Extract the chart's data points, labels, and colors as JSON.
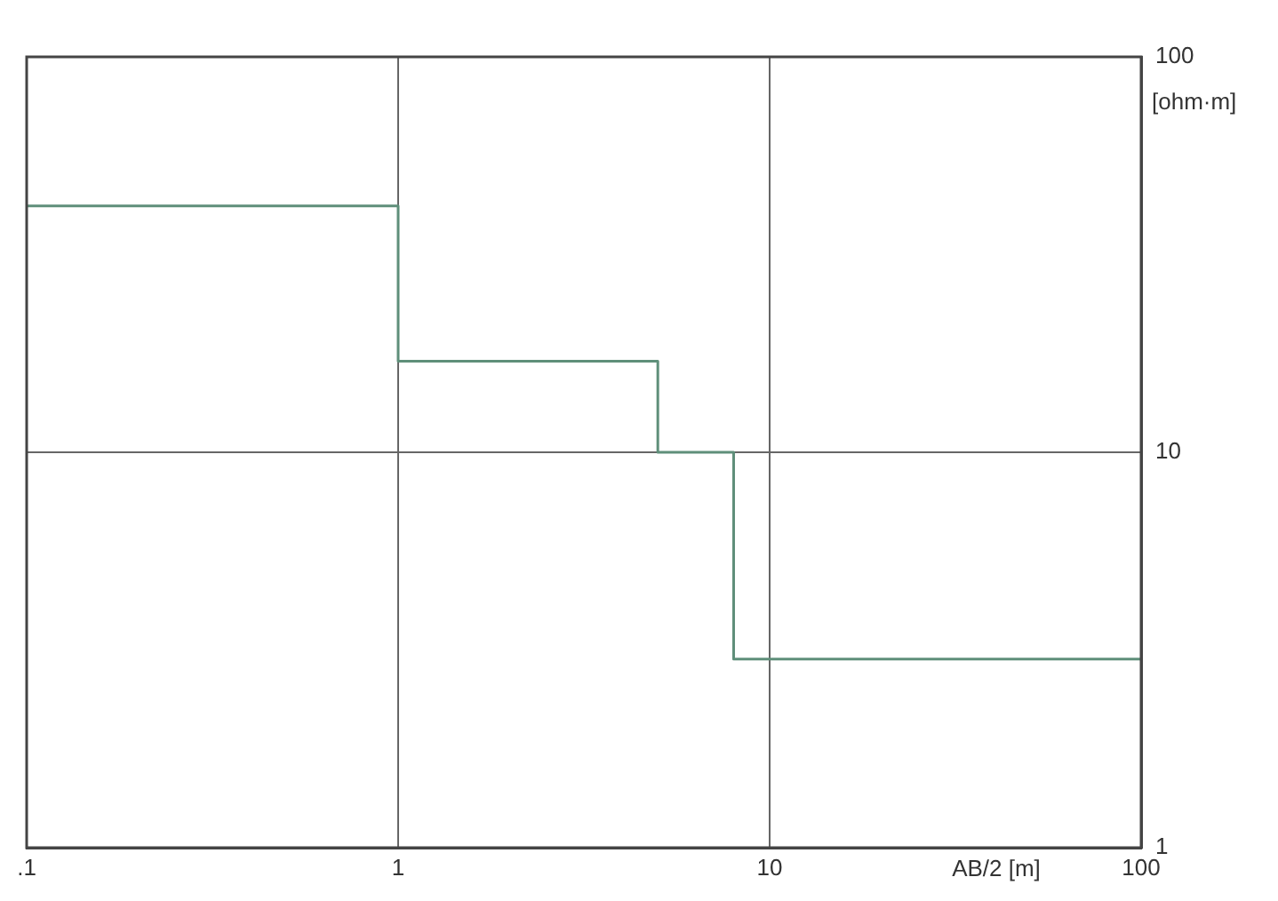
{
  "chart_data": {
    "type": "step",
    "xlabel": "AB/2 [m]",
    "ylabel": "[ohm·m]",
    "log": "xy",
    "grid": true,
    "legend": false,
    "xlim": [
      0.1,
      100
    ],
    "xticks": [
      {
        "value": 0.1,
        "label": ".1"
      },
      1,
      10,
      100
    ],
    "ylim": [
      1,
      100
    ],
    "yticks": [
      1,
      10,
      100
    ],
    "series": [
      {
        "color": "#5f8f7a",
        "x": [
          0.1,
          1,
          5,
          8,
          100
        ],
        "values": [
          42,
          17,
          10,
          3,
          3
        ]
      }
    ]
  }
}
